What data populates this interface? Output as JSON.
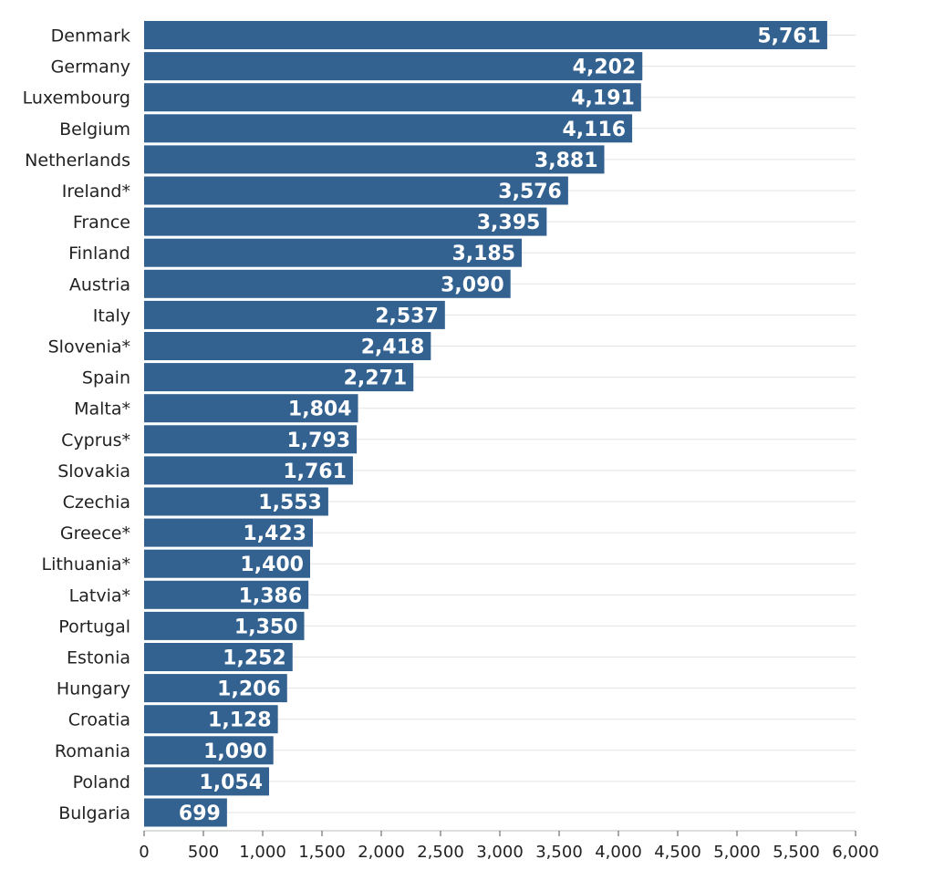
{
  "chart_data": {
    "type": "bar",
    "orientation": "horizontal",
    "categories": [
      "Denmark",
      "Germany",
      "Luxembourg",
      "Belgium",
      "Netherlands",
      "Ireland*",
      "France",
      "Finland",
      "Austria",
      "Italy",
      "Slovenia*",
      "Spain",
      "Malta*",
      "Cyprus*",
      "Slovakia",
      "Czechia",
      "Greece*",
      "Lithuania*",
      "Latvia*",
      "Portugal",
      "Estonia",
      "Hungary",
      "Croatia",
      "Romania",
      "Poland",
      "Bulgaria"
    ],
    "values": [
      5761,
      4202,
      4191,
      4116,
      3881,
      3576,
      3395,
      3185,
      3090,
      2537,
      2418,
      2271,
      1804,
      1793,
      1761,
      1553,
      1423,
      1400,
      1386,
      1350,
      1252,
      1206,
      1128,
      1090,
      1054,
      699
    ],
    "value_labels": [
      "5,761",
      "4,202",
      "4,191",
      "4,116",
      "3,881",
      "3,576",
      "3,395",
      "3,185",
      "3,090",
      "2,537",
      "2,418",
      "2,271",
      "1,804",
      "1,793",
      "1,761",
      "1,553",
      "1,423",
      "1,400",
      "1,386",
      "1,350",
      "1,252",
      "1,206",
      "1,128",
      "1,090",
      "1,054",
      "699"
    ],
    "x_ticks": [
      0,
      500,
      1000,
      1500,
      2000,
      2500,
      3000,
      3500,
      4000,
      4500,
      5000,
      5500,
      6000
    ],
    "x_tick_labels": [
      "0",
      "500",
      "1,000",
      "1,500",
      "2,000",
      "2,500",
      "3,000",
      "3,500",
      "4,000",
      "4,500",
      "5,000",
      "5,500",
      "6,000"
    ],
    "xlim": [
      0,
      6000
    ],
    "title": "",
    "xlabel": "",
    "ylabel": "",
    "grid": true,
    "legend": "none",
    "bar_color": "#336291",
    "value_label_color": "#ffffff"
  }
}
